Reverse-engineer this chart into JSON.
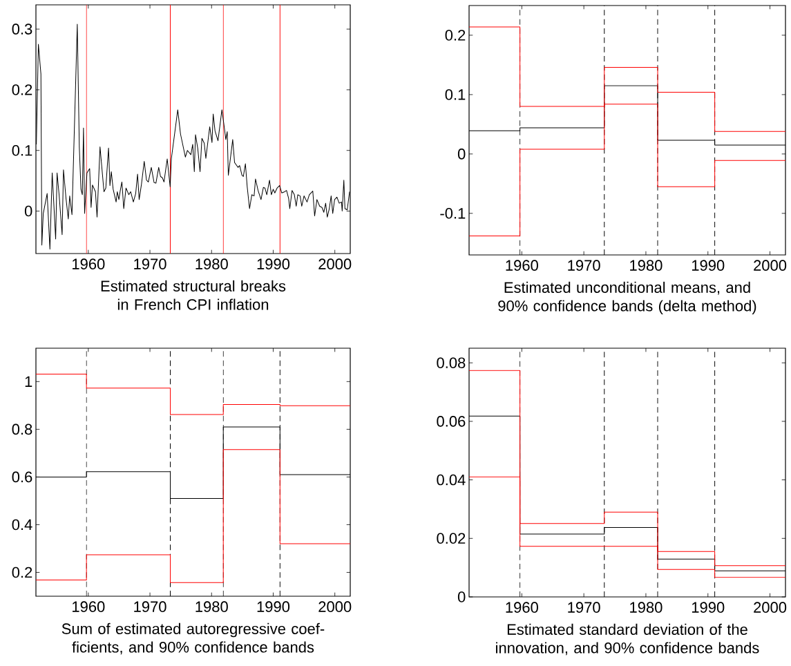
{
  "chart_data": [
    {
      "type": "line",
      "xlabel": "Estimated structural breaks in French CPI inflation",
      "xlim": [
        1951.5,
        2002.5
      ],
      "ylim": [
        -0.07,
        0.34
      ],
      "xticks": [
        1960,
        1970,
        1980,
        1990,
        2000
      ],
      "yticks": [
        0,
        0.1,
        0.2,
        0.3
      ],
      "x": [
        1951.57,
        1951.9,
        1952.31,
        1952.46,
        1952.69,
        1953.32,
        1953.77,
        1954.14,
        1954.7,
        1954.93,
        1955.26,
        1955.75,
        1955.97,
        1956.38,
        1956.75,
        1956.98,
        1957.35,
        1958.21,
        1958.54,
        1958.81,
        1959.03,
        1959.22,
        1959.4,
        1959.78,
        1960.22,
        1960.45,
        1960.67,
        1961.16,
        1961.42,
        1961.9,
        1962.54,
        1962.84,
        1963.28,
        1963.51,
        1963.73,
        1964.03,
        1964.51,
        1964.7,
        1964.96,
        1965.19,
        1965.45,
        1965.75,
        1966.12,
        1966.57,
        1966.87,
        1967.31,
        1967.69,
        1967.99,
        1968.25,
        1968.62,
        1969.07,
        1969.44,
        1969.74,
        1970.22,
        1970.67,
        1970.97,
        1971.42,
        1971.72,
        1972.01,
        1972.28,
        1972.8,
        1973.28,
        1973.47,
        1974.51,
        1974.96,
        1975.75,
        1976.08,
        1976.64,
        1976.94,
        1977.2,
        1977.39,
        1977.76,
        1978.13,
        1978.43,
        1978.81,
        1979.07,
        1979.7,
        1980.07,
        1980.26,
        1980.56,
        1981.04,
        1981.68,
        1982.05,
        1982.31,
        1982.54,
        1982.72,
        1983.43,
        1983.73,
        1984.29,
        1984.55,
        1984.93,
        1985.15,
        1985.49,
        1985.78,
        1986.16,
        1986.53,
        1986.9,
        1987.13,
        1987.54,
        1988.02,
        1988.4,
        1988.66,
        1988.96,
        1989.4,
        1989.7,
        1990.0,
        1990.26,
        1990.63,
        1991.04,
        1991.38,
        1991.87,
        1992.16,
        1992.5,
        1992.69,
        1993.06,
        1993.43,
        1993.73,
        1993.99,
        1994.37,
        1994.63,
        1995.0,
        1995.49,
        1995.86,
        1996.42,
        1996.72,
        1997.09,
        1997.54,
        1997.91,
        1998.21,
        1998.51,
        1998.77,
        1999.1,
        1999.4,
        1999.66,
        1999.96,
        2000.34,
        2000.71,
        2001.08,
        2001.19,
        2001.46,
        2001.64,
        2002.01,
        2002.39
      ],
      "series": [
        {
          "color": "#000000",
          "values": [
            0.11,
            0.275,
            0.226,
            -0.056,
            -0.004,
            0.029,
            -0.063,
            0.063,
            -0.046,
            0.063,
            0.027,
            -0.039,
            0.068,
            0.021,
            -0.013,
            0.025,
            -0.006,
            0.308,
            0.105,
            0.036,
            0.027,
            0.137,
            -0.004,
            0.063,
            0.07,
            0.006,
            0.043,
            0.032,
            -0.01,
            0.106,
            0.032,
            0.038,
            0.104,
            0.042,
            0.065,
            0.036,
            0.015,
            0.032,
            0.019,
            0.034,
            0.048,
            0.004,
            0.038,
            0.027,
            0.032,
            0.015,
            0.029,
            0.061,
            0.019,
            0.044,
            0.082,
            0.051,
            0.048,
            0.072,
            0.047,
            0.046,
            0.072,
            0.057,
            0.055,
            0.048,
            0.086,
            0.04,
            0.086,
            0.167,
            0.127,
            0.089,
            0.1,
            0.093,
            0.11,
            0.065,
            0.126,
            0.103,
            0.065,
            0.12,
            0.112,
            0.087,
            0.139,
            0.113,
            0.16,
            0.132,
            0.116,
            0.167,
            0.139,
            0.118,
            0.131,
            0.059,
            0.118,
            0.08,
            0.072,
            0.075,
            0.059,
            0.057,
            0.078,
            0.04,
            0.004,
            0.027,
            0.025,
            0.053,
            0.034,
            0.019,
            0.039,
            0.038,
            0.027,
            0.051,
            0.027,
            0.036,
            0.03,
            0.038,
            0.042,
            0.03,
            0.032,
            0.034,
            0.021,
            0.004,
            0.034,
            0.027,
            0.008,
            0.027,
            0.025,
            0.008,
            0.025,
            0.015,
            0.027,
            0.033,
            -0.008,
            0.019,
            0.008,
            0.006,
            -0.002,
            0.013,
            -0.01,
            0.004,
            0.025,
            -0.004,
            0.019,
            0.023,
            0.013,
            0.015,
            0.0,
            0.051,
            0.004,
            0.002,
            0.032
          ]
        }
      ],
      "ref_lines": [
        {
          "axis": "x",
          "value": 1959.7,
          "color": "#ff0000",
          "line_style": "solid"
        },
        {
          "axis": "x",
          "value": 1973.3,
          "color": "#ff0000",
          "line_style": "solid"
        },
        {
          "axis": "x",
          "value": 1981.9,
          "color": "#ff0000",
          "line_style": "solid"
        },
        {
          "axis": "x",
          "value": 1991.1,
          "color": "#ff0000",
          "line_style": "solid"
        }
      ]
    },
    {
      "type": "step",
      "xlabel": "Estimated unconditional means, and 90% confidence bands (delta method)",
      "xlim": [
        1951.5,
        2002.5
      ],
      "ylim": [
        -0.17,
        0.25
      ],
      "xticks": [
        1960,
        1970,
        1980,
        1990,
        2000
      ],
      "yticks": [
        -0.1,
        0,
        0.1,
        0.2
      ],
      "x": [
        1951.5,
        1959.7,
        1973.3,
        1981.9,
        1991.1,
        2002.5
      ],
      "series": [
        {
          "color": "#000000",
          "values": [
            0.039,
            0.044,
            0.115,
            0.023,
            0.015,
            0.015
          ]
        },
        {
          "color": "#ff0000",
          "values": [
            0.214,
            0.08,
            0.146,
            0.104,
            0.038,
            0.038
          ]
        },
        {
          "color": "#ff0000",
          "values": [
            -0.138,
            0.008,
            0.084,
            -0.055,
            -0.011,
            -0.011
          ]
        }
      ],
      "ref_lines": [
        {
          "axis": "x",
          "value": 1959.7,
          "color": "#000000",
          "line_style": "dashed"
        },
        {
          "axis": "x",
          "value": 1973.3,
          "color": "#000000",
          "line_style": "dashed"
        },
        {
          "axis": "x",
          "value": 1981.9,
          "color": "#000000",
          "line_style": "dashed"
        },
        {
          "axis": "x",
          "value": 1991.1,
          "color": "#000000",
          "line_style": "dashed"
        }
      ]
    },
    {
      "type": "step",
      "xlabel": "Sum of estimated autoregressive coef-ficients, and 90% confidence bands",
      "xlim": [
        1951.5,
        2002.5
      ],
      "ylim": [
        0.1,
        1.14
      ],
      "xticks": [
        1960,
        1970,
        1980,
        1990,
        2000
      ],
      "yticks": [
        0.2,
        0.4,
        0.6,
        0.8,
        1
      ],
      "x": [
        1951.5,
        1959.7,
        1973.3,
        1981.9,
        1991.1,
        2002.5
      ],
      "series": [
        {
          "color": "#000000",
          "values": [
            0.6,
            0.622,
            0.51,
            0.81,
            0.61,
            0.61
          ]
        },
        {
          "color": "#ff0000",
          "values": [
            1.031,
            0.973,
            0.862,
            0.904,
            0.899,
            0.899
          ]
        },
        {
          "color": "#ff0000",
          "values": [
            0.168,
            0.274,
            0.157,
            0.715,
            0.32,
            0.32
          ]
        }
      ],
      "ref_lines": [
        {
          "axis": "x",
          "value": 1959.7,
          "color": "#000000",
          "line_style": "dashed"
        },
        {
          "axis": "x",
          "value": 1973.3,
          "color": "#000000",
          "line_style": "dashed"
        },
        {
          "axis": "x",
          "value": 1981.9,
          "color": "#000000",
          "line_style": "dashed"
        },
        {
          "axis": "x",
          "value": 1991.1,
          "color": "#000000",
          "line_style": "dashed"
        }
      ]
    },
    {
      "type": "step",
      "xlabel": "Estimated standard deviation of the innovation, and 90% confidence bands",
      "xlim": [
        1951.5,
        2002.5
      ],
      "ylim": [
        0,
        0.085
      ],
      "xticks": [
        1960,
        1970,
        1980,
        1990,
        2000
      ],
      "yticks": [
        0,
        0.02,
        0.04,
        0.06,
        0.08
      ],
      "x": [
        1951.5,
        1959.7,
        1973.3,
        1981.9,
        1991.1,
        2002.5
      ],
      "series": [
        {
          "color": "#000000",
          "values": [
            0.0618,
            0.0215,
            0.0237,
            0.0129,
            0.0089,
            0.0089
          ]
        },
        {
          "color": "#ff0000",
          "values": [
            0.0774,
            0.0251,
            0.029,
            0.0155,
            0.0107,
            0.0107
          ]
        },
        {
          "color": "#ff0000",
          "values": [
            0.041,
            0.0173,
            0.0173,
            0.0094,
            0.0067,
            0.0067
          ]
        }
      ],
      "ref_lines": [
        {
          "axis": "x",
          "value": 1959.7,
          "color": "#000000",
          "line_style": "dashed"
        },
        {
          "axis": "x",
          "value": 1973.3,
          "color": "#000000",
          "line_style": "dashed"
        },
        {
          "axis": "x",
          "value": 1981.9,
          "color": "#000000",
          "line_style": "dashed"
        },
        {
          "axis": "x",
          "value": 1991.1,
          "color": "#000000",
          "line_style": "dashed"
        }
      ]
    }
  ]
}
